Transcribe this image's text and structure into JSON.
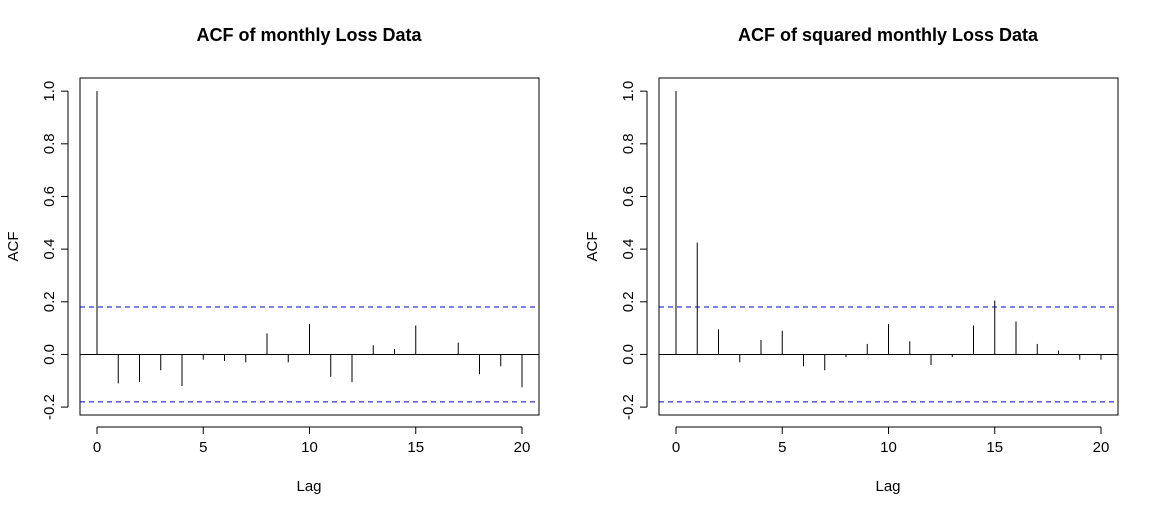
{
  "chart_data": [
    {
      "type": "bar",
      "title": "ACF of monthly Loss Data",
      "xlabel": "Lag",
      "ylabel": "ACF",
      "xlim": [
        -0.8,
        20.8
      ],
      "ylim": [
        -0.23,
        1.05
      ],
      "x_ticks": [
        "0",
        "5",
        "10",
        "15",
        "20"
      ],
      "y_ticks": [
        "-0.2",
        "0.0",
        "0.2",
        "0.4",
        "0.6",
        "0.8",
        "1.0"
      ],
      "x": [
        0,
        1,
        2,
        3,
        4,
        5,
        6,
        7,
        8,
        9,
        10,
        11,
        12,
        13,
        14,
        15,
        16,
        17,
        18,
        19,
        20
      ],
      "values": [
        1.0,
        -0.11,
        -0.105,
        -0.06,
        -0.12,
        -0.02,
        -0.025,
        -0.03,
        0.08,
        -0.03,
        0.115,
        -0.085,
        -0.105,
        0.035,
        0.02,
        0.11,
        0.0,
        0.045,
        -0.075,
        -0.045,
        -0.125
      ],
      "confidence_bound": 0.18,
      "confidence_color": "#0000cc",
      "grid": false
    },
    {
      "type": "bar",
      "title": "ACF of squared monthly Loss Data",
      "xlabel": "Lag",
      "ylabel": "ACF",
      "xlim": [
        -0.8,
        20.8
      ],
      "ylim": [
        -0.23,
        1.05
      ],
      "x_ticks": [
        "0",
        "5",
        "10",
        "15",
        "20"
      ],
      "y_ticks": [
        "-0.2",
        "0.0",
        "0.2",
        "0.4",
        "0.6",
        "0.8",
        "1.0"
      ],
      "x": [
        0,
        1,
        2,
        3,
        4,
        5,
        6,
        7,
        8,
        9,
        10,
        11,
        12,
        13,
        14,
        15,
        16,
        17,
        18,
        19,
        20
      ],
      "values": [
        1.0,
        0.425,
        0.095,
        -0.03,
        0.055,
        0.09,
        -0.045,
        -0.06,
        -0.01,
        0.04,
        0.115,
        0.05,
        -0.04,
        -0.01,
        0.11,
        0.205,
        0.125,
        0.04,
        0.015,
        -0.02,
        -0.02
      ],
      "confidence_bound": 0.18,
      "confidence_color": "#0000cc",
      "grid": false
    }
  ]
}
